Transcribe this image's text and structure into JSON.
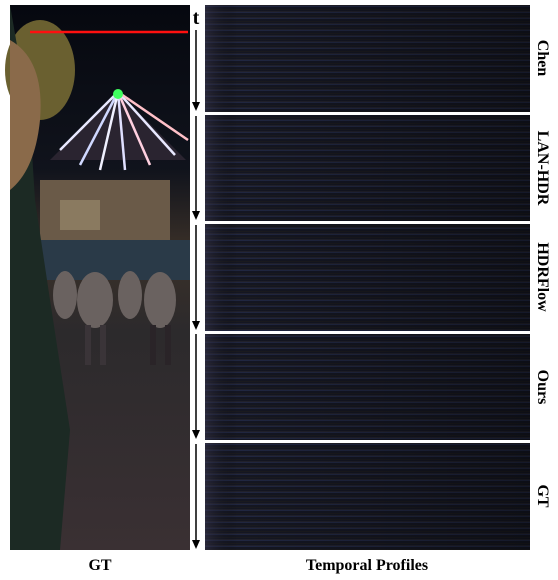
{
  "figure": {
    "time_label": "t",
    "left_caption": "GT",
    "right_caption": "Temporal Profiles",
    "profile_labels": [
      "Chen",
      "LAN-HDR",
      "HDRFlow",
      "Ours",
      "GT"
    ]
  }
}
